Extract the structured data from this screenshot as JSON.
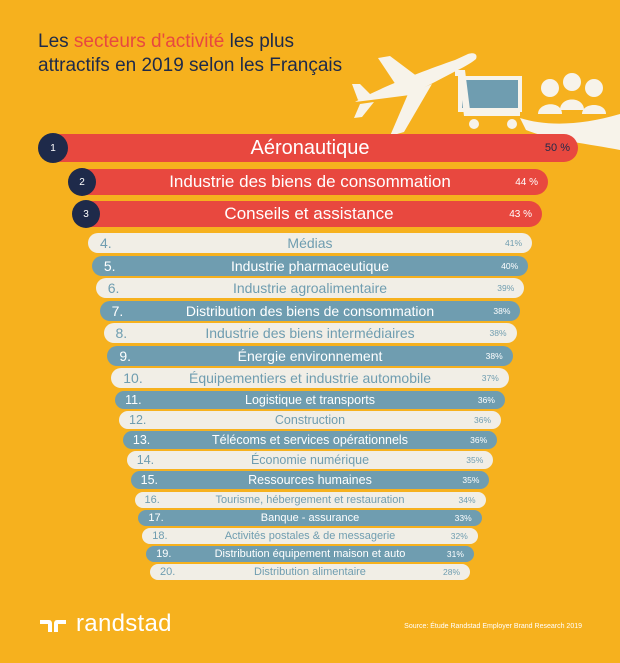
{
  "title": {
    "part1": "Les ",
    "highlight": "secteurs d'activité",
    "part2": " les plus attractifs en 2019 selon les Français"
  },
  "colors": {
    "background": "#F6B11E",
    "top3": "#E8483F",
    "light": "#F1EEE6",
    "blue": "#6F9DB0",
    "navy": "#1E2A4A",
    "lightText": "#6F9DB0"
  },
  "chart_data": {
    "type": "bar",
    "categories": [
      "Aéronautique",
      "Industrie des biens de consommation",
      "Conseils et assistance",
      "Médias",
      "Industrie pharmaceutique",
      "Industrie agroalimentaire",
      "Distribution des biens de consommation",
      "Industrie des biens intermédiaires",
      "Énergie environnement",
      "Équipementiers et industrie automobile",
      "Logistique et transports",
      "Construction",
      "Télécoms et services opérationnels",
      "Économie numérique",
      "Ressources humaines",
      "Tourisme, hébergement et restauration",
      "Banque - assurance",
      "Activités postales & de messagerie",
      "Distribution équipement maison et auto",
      "Distribution alimentaire"
    ],
    "values": [
      50,
      44,
      43,
      41,
      40,
      39,
      38,
      38,
      38,
      37,
      36,
      36,
      36,
      35,
      35,
      34,
      33,
      32,
      31,
      28
    ],
    "value_labels": [
      "50 %",
      "44 %",
      "43 %",
      "41%",
      "40%",
      "39%",
      "38%",
      "38%",
      "38%",
      "37%",
      "36%",
      "36%",
      "36%",
      "35%",
      "35%",
      "34%",
      "33%",
      "32%",
      "31%",
      "28%"
    ],
    "ranks": [
      "1",
      "2",
      "3",
      "4.",
      "5.",
      "6.",
      "7.",
      "8.",
      "9.",
      "10.",
      "11.",
      "12.",
      "13.",
      "14.",
      "15.",
      "16.",
      "17.",
      "18.",
      "19.",
      "20."
    ],
    "styles": [
      "red",
      "red",
      "red",
      "light",
      "blue",
      "light",
      "blue",
      "light",
      "blue",
      "light",
      "blue",
      "light",
      "blue",
      "light",
      "blue",
      "light",
      "blue",
      "light",
      "blue",
      "light"
    ]
  },
  "footer": {
    "logo_text": "randstad",
    "source": "Source: Étude Randstad Employer Brand Research 2019"
  }
}
